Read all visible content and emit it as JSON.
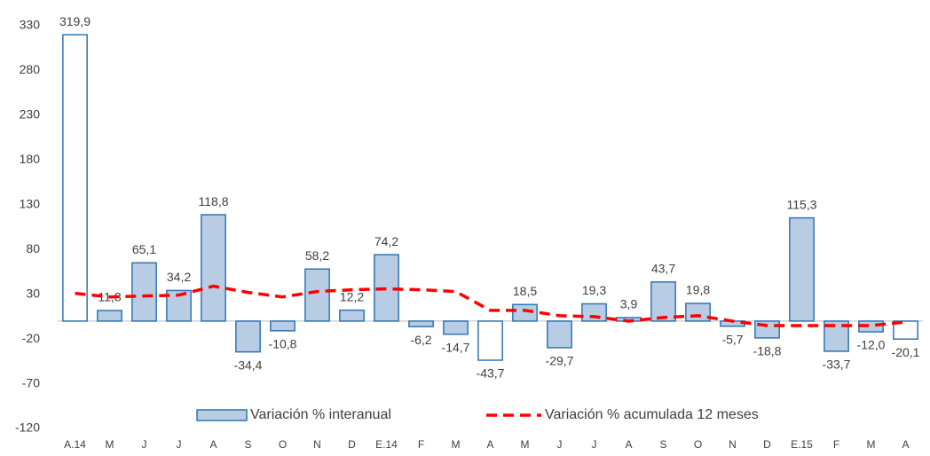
{
  "chart_data": {
    "type": "bar",
    "categories": [
      "A.14",
      "M",
      "J",
      "J",
      "A",
      "S",
      "O",
      "N",
      "D",
      "E.14",
      "F",
      "M",
      "A",
      "M",
      "J",
      "J",
      "A",
      "S",
      "O",
      "N",
      "D",
      "E.15",
      "F",
      "M",
      "A"
    ],
    "ylim": [
      -120,
      330
    ],
    "yticks": [
      330,
      280,
      230,
      180,
      130,
      80,
      30,
      -20,
      -70,
      -120
    ],
    "series": [
      {
        "name": "Variación % interanual",
        "type": "bar",
        "color": "#b8cce4",
        "edge_color": "#2e75b6",
        "bar_colors": [
          "#ffffff",
          "#b8cce4",
          "#b8cce4",
          "#b8cce4",
          "#b8cce4",
          "#b8cce4",
          "#b8cce4",
          "#b8cce4",
          "#b8cce4",
          "#b8cce4",
          "#b8cce4",
          "#b8cce4",
          "#ffffff",
          "#b8cce4",
          "#b8cce4",
          "#b8cce4",
          "#b8cce4",
          "#b8cce4",
          "#b8cce4",
          "#b8cce4",
          "#b8cce4",
          "#b8cce4",
          "#b8cce4",
          "#b8cce4",
          "#ffffff"
        ],
        "values": [
          319.9,
          11.8,
          65.1,
          34.2,
          118.8,
          -34.4,
          -10.8,
          58.2,
          12.2,
          74.2,
          -6.2,
          -14.7,
          -43.7,
          18.5,
          -29.7,
          19.3,
          3.9,
          43.7,
          19.8,
          -5.7,
          -18.8,
          115.3,
          -33.7,
          -12.0,
          -20.1
        ],
        "value_labels": [
          "319,9",
          "11,8",
          "65,1",
          "34,2",
          "118,8",
          "-34,4",
          "-10,8",
          "58,2",
          "12,2",
          "74,2",
          "-6,2",
          "-14,7",
          "-43,7",
          "18,5",
          "-29,7",
          "19,3",
          "3,9",
          "43,7",
          "19,8",
          "-5,7",
          "-18,8",
          "115,3",
          "-33,7",
          "-12,0",
          "-20,1"
        ]
      },
      {
        "name": "Variación % acumulada 12 meses",
        "type": "line",
        "color": "#ff0000",
        "dashed": true,
        "values": [
          31,
          27,
          28,
          29,
          39,
          32,
          27,
          33,
          35,
          36,
          35,
          33,
          12,
          12,
          6,
          5,
          0,
          4,
          6,
          0,
          -5,
          -5,
          -5,
          -5,
          -1
        ]
      }
    ]
  }
}
